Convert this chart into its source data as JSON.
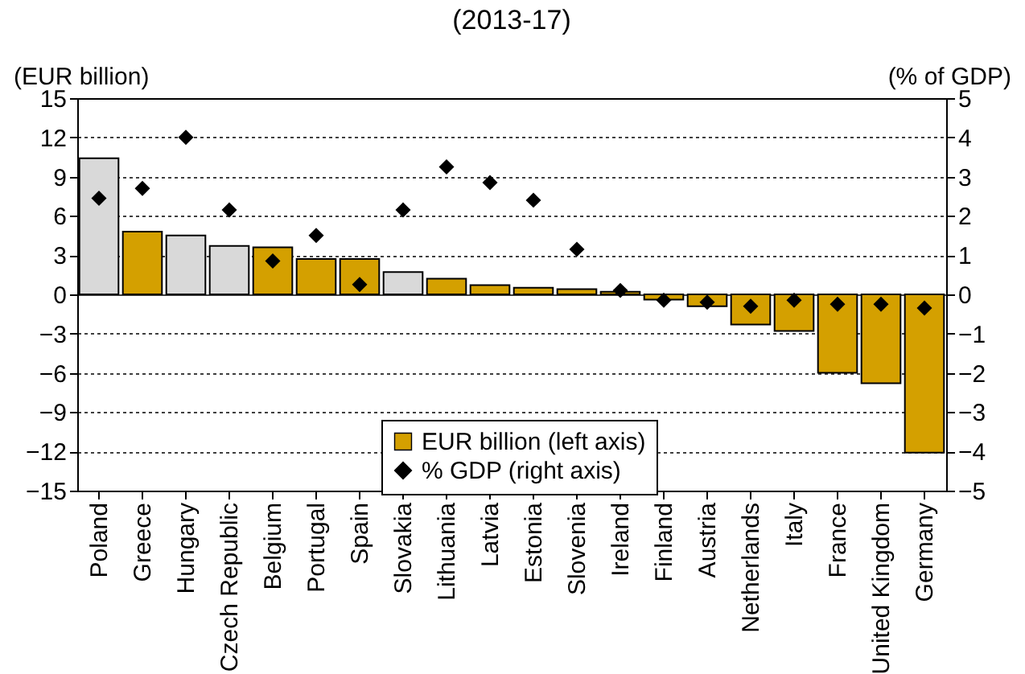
{
  "chart_data": {
    "type": "bar",
    "title": "(2013-17)",
    "ylabel": "(EUR billion)",
    "y2label": "(% of GDP)",
    "categories": [
      "Poland",
      "Greece",
      "Hungary",
      "Czech Republic",
      "Belgium",
      "Portugal",
      "Spain",
      "Slovakia",
      "Lithuania",
      "Latvia",
      "Estonia",
      "Slovenia",
      "Ireland",
      "Finland",
      "Austria",
      "Netherlands",
      "Italy",
      "France",
      "United Kingdom",
      "Germany"
    ],
    "series": [
      {
        "name": "EUR billion (left axis)",
        "color": "#d4a000",
        "colors": [
          "#d9d9d9",
          "#d4a000",
          "#d9d9d9",
          "#d9d9d9",
          "#d4a000",
          "#d4a000",
          "#d4a000",
          "#d9d9d9",
          "#d4a000",
          "#d4a000",
          "#d4a000",
          "#d4a000",
          "#d4a000",
          "#d4a000",
          "#d4a000",
          "#d4a000",
          "#d4a000",
          "#d4a000",
          "#d4a000",
          "#d4a000"
        ],
        "values": [
          10.4,
          4.8,
          4.5,
          3.7,
          3.6,
          2.7,
          2.7,
          1.7,
          1.2,
          0.7,
          0.5,
          0.4,
          0.2,
          -0.4,
          -0.9,
          -2.3,
          -2.8,
          -6.0,
          -6.8,
          -12.1
        ]
      },
      {
        "name": "% GDP (right axis)",
        "type": "scatter",
        "axis": "y2",
        "color": "#000000",
        "values": [
          2.45,
          2.7,
          4.0,
          2.15,
          0.85,
          1.5,
          0.25,
          2.15,
          3.25,
          2.85,
          2.4,
          1.15,
          0.1,
          -0.15,
          -0.2,
          -0.3,
          -0.15,
          -0.25,
          -0.25,
          -0.35
        ]
      }
    ],
    "ylim": [
      -15,
      15
    ],
    "yticks": [
      -15,
      -12,
      -9,
      -6,
      -3,
      0,
      3,
      6,
      9,
      12,
      15
    ],
    "y2lim": [
      -5,
      5
    ],
    "y2ticks": [
      -5,
      -4,
      -3,
      -2,
      -1,
      0,
      1,
      2,
      3,
      4,
      5
    ],
    "grid": "y",
    "legend": "bottom",
    "marker": "diamond"
  }
}
